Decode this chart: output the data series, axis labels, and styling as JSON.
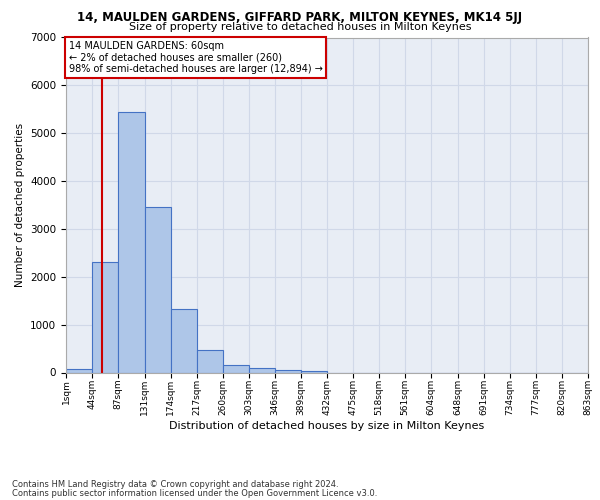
{
  "title": "14, MAULDEN GARDENS, GIFFARD PARK, MILTON KEYNES, MK14 5JJ",
  "subtitle": "Size of property relative to detached houses in Milton Keynes",
  "xlabel": "Distribution of detached houses by size in Milton Keynes",
  "ylabel": "Number of detached properties",
  "annotation_title": "14 MAULDEN GARDENS: 60sqm",
  "annotation_line1": "← 2% of detached houses are smaller (260)",
  "annotation_line2": "98% of semi-detached houses are larger (12,894) →",
  "footer_line1": "Contains HM Land Registry data © Crown copyright and database right 2024.",
  "footer_line2": "Contains public sector information licensed under the Open Government Licence v3.0.",
  "property_size": 60,
  "bar_edges": [
    1,
    44,
    87,
    131,
    174,
    217,
    260,
    303,
    346,
    389,
    432,
    475,
    518,
    561,
    604,
    648,
    691,
    734,
    777,
    820,
    863
  ],
  "bar_heights": [
    75,
    2300,
    5450,
    3450,
    1320,
    480,
    160,
    90,
    55,
    30,
    0,
    0,
    0,
    0,
    0,
    0,
    0,
    0,
    0,
    0
  ],
  "bar_color": "#aec6e8",
  "bar_edge_color": "#4472c4",
  "vline_color": "#cc0000",
  "annotation_box_color": "#cc0000",
  "grid_color": "#d0d8e8",
  "bg_color": "#e8edf5",
  "ylim": [
    0,
    7000
  ],
  "yticks": [
    0,
    1000,
    2000,
    3000,
    4000,
    5000,
    6000,
    7000
  ]
}
